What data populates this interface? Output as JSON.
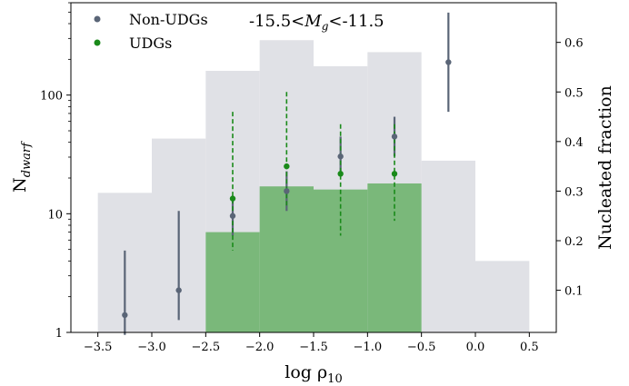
{
  "chart_data": {
    "type": "bar",
    "xlabel_base": "log ρ",
    "xlabel_sub": "10",
    "ylabel_base": "N",
    "ylabel_sub": "dwarf",
    "ylabel_right": "Nucleated fraction",
    "annotation": {
      "prefix": "-15.5<",
      "var": "M",
      "sub": "g",
      "suffix": "<-11.5"
    },
    "legend": [
      {
        "label": "Non-UDGs",
        "color": "#5a6577"
      },
      {
        "label": "UDGs",
        "color": "#1a8a1a"
      }
    ],
    "x_ticks": [
      -3.5,
      -3.0,
      -2.5,
      -2.0,
      -1.5,
      -1.0,
      -0.5,
      0.0,
      0.5
    ],
    "x_tick_labels": [
      "−3.5",
      "−3.0",
      "−2.5",
      "−2.0",
      "−1.5",
      "−1.0",
      "−0.5",
      "0.0",
      "0.5"
    ],
    "xlim": [
      -3.75,
      0.75
    ],
    "y_left_scale": "log",
    "y_left_lim": [
      1,
      600
    ],
    "y_left_ticks": [
      1,
      10,
      100
    ],
    "y_left_tick_labels": [
      "1",
      "10",
      "100"
    ],
    "y_right_lim": [
      0.015,
      0.68
    ],
    "y_right_ticks": [
      0.1,
      0.2,
      0.3,
      0.4,
      0.5,
      0.6
    ],
    "y_right_tick_labels": [
      "0.1",
      "0.2",
      "0.3",
      "0.4",
      "0.5",
      "0.6"
    ],
    "hist_nonudg": {
      "name": "Non-UDGs",
      "color": "#e0e1e6",
      "bin_edges": [
        -3.5,
        -3.0,
        -2.5,
        -2.0,
        -1.5,
        -1.0,
        -0.5,
        0.0,
        0.5
      ],
      "values": [
        15,
        43,
        160,
        290,
        175,
        230,
        28,
        4
      ]
    },
    "hist_udg": {
      "name": "UDGs",
      "color": "#7ab87a",
      "bin_edges": [
        -2.5,
        -2.0,
        -1.5,
        -1.0,
        -0.5
      ],
      "values": [
        7,
        17,
        16,
        18
      ]
    },
    "frac_nonudg": {
      "name": "Non-UDGs",
      "color": "#5a6577",
      "x": [
        -3.25,
        -2.75,
        -2.25,
        -1.75,
        -1.25,
        -0.75,
        -0.25
      ],
      "y": [
        0.05,
        0.1,
        0.25,
        0.3,
        0.37,
        0.41,
        0.56
      ],
      "err_low": [
        0.04,
        0.06,
        0.04,
        0.04,
        0.04,
        0.04,
        0.1
      ],
      "err_high": [
        0.13,
        0.16,
        0.04,
        0.04,
        0.04,
        0.04,
        0.1
      ]
    },
    "frac_udg": {
      "name": "UDGs",
      "color": "#1a8a1a",
      "x": [
        -2.25,
        -1.75,
        -1.25,
        -0.75
      ],
      "y": [
        0.285,
        0.35,
        0.335,
        0.335
      ],
      "err_low": [
        0.105,
        0.08,
        0.125,
        0.095
      ],
      "err_high": [
        0.175,
        0.15,
        0.1,
        0.1
      ]
    }
  }
}
